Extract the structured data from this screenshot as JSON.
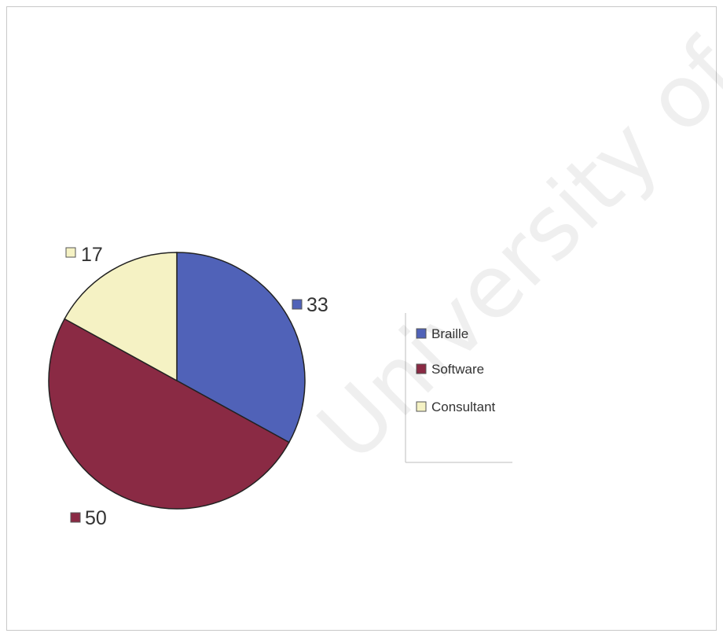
{
  "chart_data": {
    "type": "pie",
    "categories": [
      "Braille",
      "Software",
      "Consultant"
    ],
    "values": [
      33,
      50,
      17
    ],
    "data_labels": [
      "33",
      "50",
      "17"
    ],
    "colors": [
      "#5062b8",
      "#8a2a44",
      "#f5f2c4"
    ],
    "title": "",
    "legend": {
      "placement": "right",
      "entries": [
        "Braille",
        "Software",
        "Consultant"
      ]
    }
  },
  "watermark": {
    "text": "University of Cape Town"
  }
}
